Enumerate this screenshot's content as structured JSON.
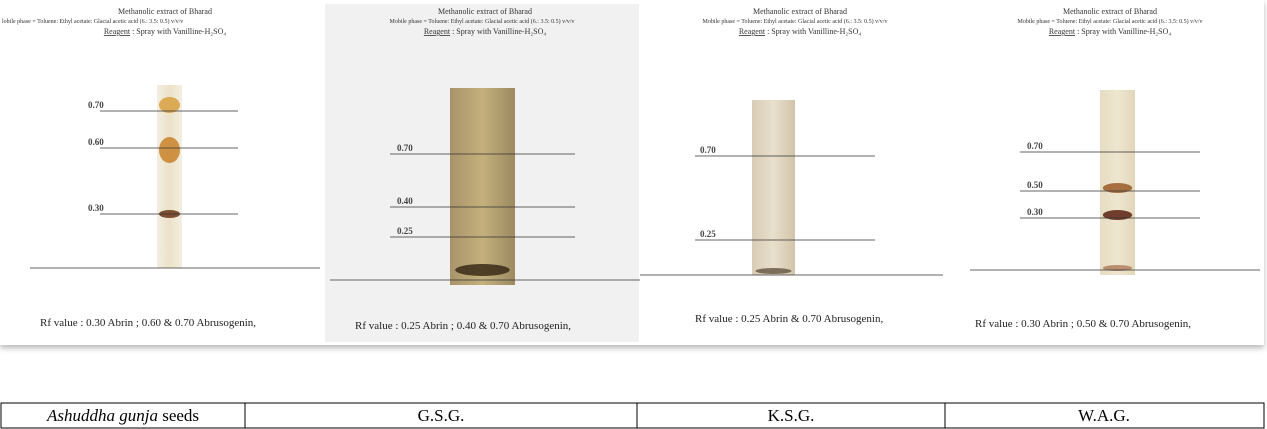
{
  "panels": [
    {
      "title": "Methanolic extract of Bharad",
      "mobile_phase": "lobile phase = Toluene: Ethyl acetate: Glacial acetic acid (6.: 3.5: 0.5) v/v/v",
      "reagent_label": "Reagent",
      "reagent_text": " : Spray with Vanilline-H₂SO₄",
      "bands": [
        "0.70",
        "0.60",
        "0.30"
      ],
      "rf_text": "Rf value :  0.30 Abrin ; 0.60 & 0.70  Abrusogenin,"
    },
    {
      "title": "Methanolic extract of Bharad",
      "mobile_phase": "Mobile phase = Toluene: Ethyl acetate: Glacial acetic acid (6.: 3.5: 0.5) v/v/v",
      "reagent_label": "Reagent",
      "reagent_text": " : Spray with Vanilline-H₂SO₄",
      "bands": [
        "0.70",
        "0.40",
        "0.25"
      ],
      "rf_text": "Rf value :  0.25 Abrin ; 0.40 & 0.70  Abrusogenin,"
    },
    {
      "title": "Methanolic extract of Bharad",
      "mobile_phase": "Mobile phase = Toluene: Ethyl acetate: Glacial acetic acid (6.: 3.5: 0.5) v/v/v",
      "reagent_label": "Reagent",
      "reagent_text": " : Spray with Vanilline-H₂SO₄",
      "bands": [
        "0.70",
        "0.25"
      ],
      "rf_text": "Rf value :   0.25 Abrin & 0.70  Abrusogenin,"
    },
    {
      "title": "Methanolic extract of Bharad",
      "mobile_phase": "Mobile phase = Toluene: Ethyl acetate: Glacial acetic acid (6.: 3.5: 0.5) v/v/v",
      "reagent_label": "Reagent",
      "reagent_text": " : Spray with Vanilline-H₂SO₄",
      "bands": [
        "0.70",
        "0.50",
        "0.30"
      ],
      "rf_text": "Rf value :   0.30 Abrin ; 0.50 & 0.70  Abrusogenin,"
    }
  ],
  "table": {
    "row": [
      {
        "italic": "Ashuddha gunja",
        "text": " seeds"
      },
      "G.S.G.",
      "K.S.G.",
      "W.A.G."
    ]
  }
}
